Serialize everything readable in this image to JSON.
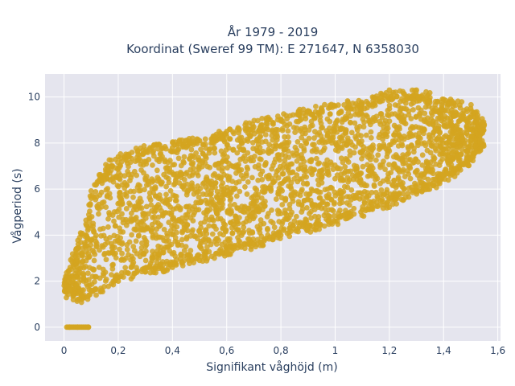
{
  "chart_data": {
    "type": "scatter",
    "title_line1": "År 1979 - 2019",
    "title_line2": "Koordinat (Sweref 99 TM): E 271647, N 6358030",
    "xlabel": "Signifikant våghöjd (m)",
    "ylabel": "Vågperiod (s)",
    "xlim": [
      -0.07,
      1.61
    ],
    "ylim": [
      -0.6,
      11.0
    ],
    "x_ticks": [
      0,
      0.2,
      0.4,
      0.6,
      0.8,
      1,
      1.2,
      1.4,
      1.6
    ],
    "x_tick_labels": [
      "0",
      "0,2",
      "0,4",
      "0,6",
      "0,8",
      "1",
      "1,2",
      "1,4",
      "1,6"
    ],
    "y_ticks": [
      0,
      2,
      4,
      6,
      8,
      10
    ],
    "y_tick_labels": [
      "0",
      "2",
      "4",
      "6",
      "8",
      "10"
    ],
    "grid": true,
    "plot_background": "#e5e5ee",
    "marker_color": "#d4a520",
    "series": [
      {
        "description_points": [
          [
            0.02,
            1.6
          ],
          [
            0.03,
            2.0
          ],
          [
            0.05,
            3.0
          ],
          [
            0.08,
            4.0
          ],
          [
            0.1,
            5.6
          ],
          [
            0.15,
            6.4
          ],
          [
            0.2,
            7.4
          ],
          [
            0.3,
            7.6
          ],
          [
            0.4,
            7.8
          ],
          [
            0.5,
            8.1
          ],
          [
            0.6,
            8.5
          ],
          [
            0.7,
            8.7
          ],
          [
            0.8,
            9.0
          ],
          [
            0.9,
            9.4
          ],
          [
            1.0,
            9.6
          ],
          [
            1.1,
            9.7
          ],
          [
            1.2,
            10.3
          ],
          [
            1.3,
            10.3
          ],
          [
            1.4,
            9.9
          ],
          [
            1.5,
            9.5
          ],
          [
            1.55,
            8.8
          ],
          [
            1.5,
            8.0
          ],
          [
            1.4,
            6.6
          ],
          [
            1.3,
            6.1
          ],
          [
            1.2,
            5.6
          ],
          [
            1.1,
            5.1
          ],
          [
            1.0,
            4.6
          ],
          [
            0.9,
            4.3
          ],
          [
            0.8,
            4.0
          ],
          [
            0.7,
            3.6
          ],
          [
            0.6,
            3.2
          ],
          [
            0.5,
            2.9
          ],
          [
            0.4,
            2.6
          ],
          [
            0.3,
            2.4
          ],
          [
            0.2,
            2.0
          ],
          [
            0.1,
            1.6
          ],
          [
            0.05,
            1.2
          ],
          [
            0.02,
            0.0
          ],
          [
            0.05,
            0.0
          ],
          [
            0.09,
            0.0
          ]
        ]
      }
    ]
  }
}
